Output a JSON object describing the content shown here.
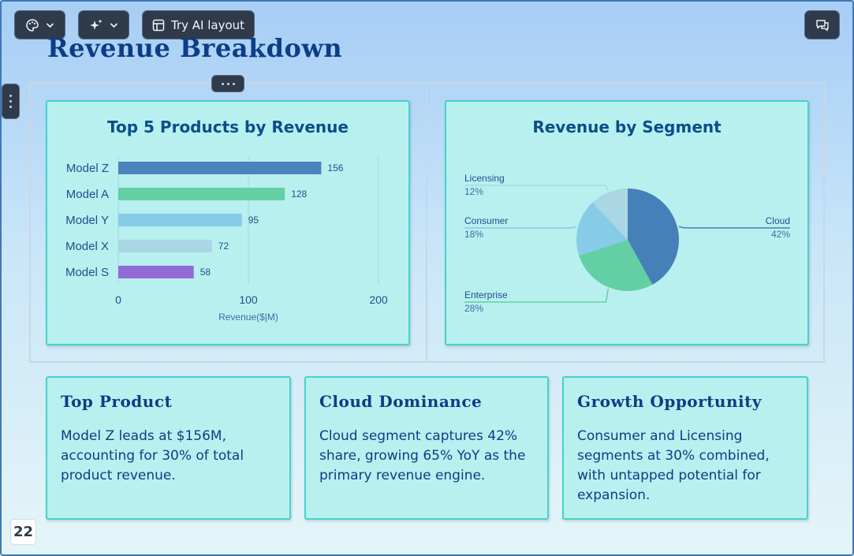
{
  "toolbar": {
    "theme_icon": "palette-icon",
    "ai_icon": "sparkles-icon",
    "try_ai_label": "Try AI layout",
    "comment_icon": "comment-icon"
  },
  "slide": {
    "title": "Revenue Breakdown",
    "page_number": "22"
  },
  "charts": {
    "bar_title": "Top 5 Products by Revenue",
    "pie_title": "Revenue by Segment"
  },
  "chart_data": [
    {
      "type": "bar",
      "orientation": "horizontal",
      "title": "Top 5 Products by Revenue",
      "categories": [
        "Model Z",
        "Model A",
        "Model Y",
        "Model X",
        "Model S"
      ],
      "values": [
        156,
        128,
        95,
        72,
        58
      ],
      "colors": [
        "#4a84ba",
        "#64cfa4",
        "#86cbe8",
        "#abd7e4",
        "#9469d8"
      ],
      "xlabel": "Revenue($|M)",
      "ylabel": "",
      "xlim": [
        0,
        200
      ],
      "xticks": [
        0,
        100,
        200
      ],
      "grid": true,
      "data_labels": true
    },
    {
      "type": "pie",
      "title": "Revenue by Segment",
      "categories": [
        "Cloud",
        "Enterprise",
        "Consumer",
        "Licensing"
      ],
      "values": [
        42,
        28,
        18,
        12
      ],
      "value_labels": [
        "42%",
        "28%",
        "18%",
        "12%"
      ],
      "colors": [
        "#4581b8",
        "#64cfa4",
        "#86cbe8",
        "#abd7e4"
      ]
    }
  ],
  "insights": [
    {
      "title": "Top Product",
      "body": "Model Z leads at $156M, accounting for 30% of total product revenue."
    },
    {
      "title": "Cloud Dominance",
      "body": "Cloud segment captures 42% share, growing 65% YoY as the primary revenue engine."
    },
    {
      "title": "Growth Opportunity",
      "body": "Consumer and Licensing segments at 30% combined, with untapped potential for expansion."
    }
  ]
}
